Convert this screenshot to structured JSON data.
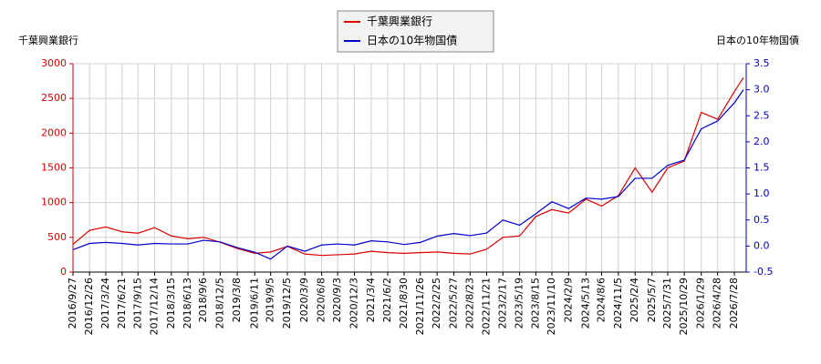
{
  "chart_data": {
    "type": "line",
    "y_label": "千葉興業銀行",
    "y2_label": "日本の10年物国債",
    "xlim": [
      "2016/9/27",
      "2026/9/30"
    ],
    "xticks": [
      "2016/9/27",
      "2016/12/26",
      "2017/3/24",
      "2017/6/21",
      "2017/9/15",
      "2017/12/14",
      "2018/3/15",
      "2018/6/13",
      "2018/9/6",
      "2018/12/5",
      "2019/3/8",
      "2019/6/11",
      "2019/9/5",
      "2019/12/5",
      "2020/3/9",
      "2020/6/8",
      "2020/9/3",
      "2020/12/3",
      "2021/3/4",
      "2021/6/2",
      "2021/8/30",
      "2021/11/26",
      "2022/2/25",
      "2022/5/27",
      "2022/8/23",
      "2022/11/21",
      "2023/2/17",
      "2023/5/19",
      "2023/8/15",
      "2023/11/10",
      "2024/2/9",
      "2024/5/13",
      "2024/8/6",
      "2024/11/5",
      "2025/2/4",
      "2025/5/7",
      "2025/7/31",
      "2025/10/29",
      "2026/1/29",
      "2026/4/28",
      "2026/7/28"
    ],
    "x": [
      "2016/9/27",
      "2016/12/26",
      "2017/3/24",
      "2017/6/21",
      "2017/9/15",
      "2017/12/14",
      "2018/3/15",
      "2018/6/13",
      "2018/9/6",
      "2018/12/5",
      "2019/3/8",
      "2019/6/11",
      "2019/9/5",
      "2019/12/5",
      "2020/3/9",
      "2020/6/8",
      "2020/9/3",
      "2020/12/3",
      "2021/3/4",
      "2021/6/2",
      "2021/8/30",
      "2021/11/26",
      "2022/2/25",
      "2022/5/27",
      "2022/8/23",
      "2022/11/21",
      "2023/2/17",
      "2023/5/19",
      "2023/8/15",
      "2023/11/10",
      "2024/2/9",
      "2024/5/13",
      "2024/8/6",
      "2024/11/5",
      "2025/2/4",
      "2025/5/7",
      "2025/7/31",
      "2025/10/29",
      "2026/1/29",
      "2026/4/28",
      "2026/7/28",
      "2026/9/15"
    ],
    "ylim": [
      0,
      3000
    ],
    "yticks": [
      0,
      500,
      1000,
      1500,
      2000,
      2500,
      3000
    ],
    "y2lim": [
      -0.5,
      3.5
    ],
    "y2ticks": [
      -0.5,
      {
        "value": 0,
        "label": "0.0"
      },
      0.5,
      {
        "value": 1,
        "label": "1.0"
      },
      1.5,
      {
        "value": 2,
        "label": "2.0"
      },
      2.5,
      {
        "value": 3,
        "label": "3.0"
      },
      3.5
    ],
    "grid": true,
    "series": [
      {
        "name": "千葉興業銀行",
        "color": "#dd0000",
        "values": [
          400,
          600,
          650,
          580,
          560,
          640,
          520,
          480,
          500,
          430,
          340,
          270,
          290,
          370,
          260,
          240,
          250,
          260,
          300,
          280,
          270,
          280,
          290,
          270,
          260,
          330,
          500,
          520,
          800,
          900,
          850,
          1050,
          950,
          1100,
          1500,
          1150,
          1500,
          1600,
          2300,
          2200,
          2600,
          2800
        ]
      },
      {
        "name": "日本の10年物国債",
        "color": "#0000cc",
        "axis": "y2",
        "values": [
          -0.07,
          0.05,
          0.07,
          0.05,
          0.02,
          0.05,
          0.04,
          0.04,
          0.11,
          0.08,
          -0.03,
          -0.12,
          -0.25,
          0.0,
          -0.1,
          0.02,
          0.04,
          0.02,
          0.1,
          0.08,
          0.03,
          0.07,
          0.19,
          0.24,
          0.2,
          0.25,
          0.5,
          0.4,
          0.62,
          0.85,
          0.72,
          0.92,
          0.9,
          0.95,
          1.3,
          1.3,
          1.55,
          1.65,
          2.25,
          2.4,
          2.75,
          3.0
        ]
      }
    ]
  }
}
